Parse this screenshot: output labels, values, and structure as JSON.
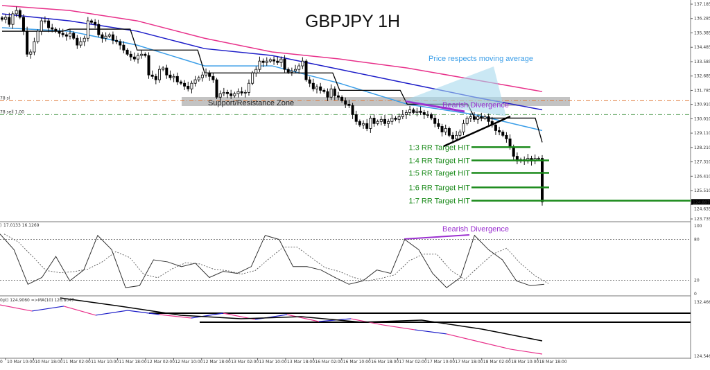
{
  "chart_data": {
    "type": "candlestick",
    "title": "GBPJPY 1H",
    "price_axis": {
      "ticks": [
        "137.185",
        "136.285",
        "135.385",
        "134.485",
        "133.585",
        "132.685",
        "131.785",
        "130.910",
        "130.010",
        "129.110",
        "128.210",
        "127.310",
        "126.410",
        "125.510",
        "124.635",
        "123.735"
      ],
      "range": [
        123.735,
        137.185
      ],
      "current_price": "124.807"
    },
    "time_axis": {
      "partial_first_label": "0",
      "ticks": [
        "10 Mar 10:00",
        "10 Mar 18:00",
        "11 Mar 02:00",
        "11 Mar 10:00",
        "11 Mar 18:00",
        "12 Mar 02:00",
        "12 Mar 10:00",
        "12 Mar 18:00",
        "13 Mar 02:00",
        "13 Mar 10:00",
        "13 Mar 18:00",
        "16 Mar 02:00",
        "16 Mar 10:00",
        "16 Mar 18:00",
        "17 Mar 02:00",
        "17 Mar 10:00",
        "17 Mar 18:00",
        "18 Mar 02:00",
        "18 Mar 10:00",
        "18 Mar 18:00"
      ]
    },
    "closes": [
      136.23,
      136.36,
      135.92,
      136.58,
      136.79,
      136.36,
      135.49,
      134.05,
      134.19,
      134.84,
      135.49,
      136.14,
      136.14,
      135.71,
      135.62,
      135.49,
      135.36,
      135.27,
      135.18,
      135.36,
      135.05,
      134.62,
      134.84,
      135.05,
      136.14,
      136.05,
      135.92,
      135.27,
      135.05,
      135.18,
      135.27,
      134.92,
      134.84,
      134.62,
      134.31,
      134.05,
      133.88,
      133.75,
      133.97,
      134.05,
      133.97,
      132.75,
      132.66,
      132.45,
      133.1,
      133.19,
      132.75,
      132.58,
      132.66,
      132.32,
      132.23,
      132.05,
      131.88,
      132.23,
      132.45,
      132.58,
      132.75,
      132.88,
      132.66,
      132.45,
      131.36,
      131.58,
      131.66,
      131.58,
      131.45,
      131.58,
      131.71,
      131.62,
      131.66,
      132.23,
      132.88,
      133.1,
      133.62,
      133.53,
      133.62,
      133.71,
      133.62,
      133.53,
      133.75,
      133.1,
      132.93,
      133.01,
      133.1,
      133.32,
      133.62,
      132.45,
      132.23,
      131.88,
      132.01,
      131.79,
      131.71,
      131.36,
      131.88,
      131.45,
      131.36,
      131.14,
      130.92,
      130.84,
      130.27,
      129.84,
      129.62,
      129.71,
      129.4,
      130.05,
      129.71,
      129.84,
      129.97,
      129.71,
      129.84,
      130.05,
      129.97,
      130.14,
      130.27,
      130.4,
      130.57,
      130.4,
      130.49,
      130.4,
      130.27,
      130.27,
      130.05,
      129.71,
      129.53,
      129.18,
      129.4,
      128.97,
      128.75,
      128.97,
      129.18,
      129.71,
      130.05,
      130.14,
      129.97,
      130.14,
      130.05,
      130.14,
      129.84,
      129.62,
      129.27,
      129.18,
      128.97,
      128.75,
      128.23,
      127.66,
      127.36,
      127.45,
      127.36,
      127.53,
      127.36,
      127.53,
      127.53,
      124.81
    ],
    "moving_averages": [
      {
        "color": "#e8308a",
        "values": [
          137.1,
          136.79,
          136.14,
          135.05,
          134.19,
          133.75,
          133.19,
          132.45,
          131.71
        ]
      },
      {
        "color": "#1c1cc8",
        "values": [
          136.58,
          136.14,
          135.49,
          134.4,
          133.97,
          133.1,
          132.23,
          131.36,
          130.57
        ]
      },
      {
        "color": "#3b9ee8",
        "values": [
          135.71,
          135.49,
          134.62,
          133.32,
          133.32,
          132.23,
          130.92,
          130.27,
          129.27
        ]
      },
      {
        "color": "#000000",
        "step": true,
        "values": [
          135.49,
          135.62,
          134.31,
          132.88,
          132.88,
          131.79,
          130.92,
          130.05,
          128.53
        ]
      }
    ],
    "order_lines": [
      {
        "label": "78 sl",
        "price": 131.14,
        "color": "#e07a3a"
      },
      {
        "label": "78 sell 1.00",
        "price": 130.27,
        "color": "#5aa05a"
      }
    ],
    "annotations": {
      "support_resistance": {
        "label": "Support/Resistance Zone",
        "price_range": [
          130.84,
          131.45
        ]
      },
      "ma_note": "Price respects moving average",
      "bearish_divergence_price": "Bearish Divergence",
      "targets": [
        {
          "label": "1:3 RR Target HIT",
          "price": 128.23
        },
        {
          "label": "1:4 RR Target HIT",
          "price": 127.4
        },
        {
          "label": "1:5 RR Target HIT",
          "price": 126.62
        },
        {
          "label": "1:6 RR Target HIT",
          "price": 125.71
        },
        {
          "label": "1:7 RR Target HIT",
          "price": 124.88
        }
      ],
      "colors": {
        "targets": "#1a8a1a",
        "divergence": "#9b30d0",
        "ma_note": "#3b9ee8"
      }
    },
    "stochastic": {
      "header": "17.0133 16.1269",
      "header_prefix": ")",
      "ticks": [
        "100",
        "80",
        "20",
        "0"
      ],
      "levels": [
        80,
        20
      ],
      "main": [
        88,
        65,
        14,
        24,
        55,
        19,
        35,
        86,
        65,
        9,
        12,
        50,
        47,
        40,
        45,
        24,
        33,
        30,
        40,
        86,
        80,
        40,
        40,
        35,
        24,
        14,
        19,
        35,
        30,
        80,
        65,
        30,
        9,
        24,
        86,
        65,
        50,
        19,
        12,
        14
      ],
      "divergence_label": "Bearish Divergence"
    },
    "lower_indicator": {
      "header": "0pt) 124.9060  =>MA(10) 126.8047",
      "ticks": [
        "132.466",
        "124.546"
      ],
      "range": [
        124.546,
        132.466
      ],
      "ma_line": [
        null,
        133.08,
        131.86,
        130.54,
        130.03,
        130.33,
        129.52,
        129.83,
        128.51,
        126.78
      ],
      "zigzag": [
        {
          "v": 132.06,
          "c": "#e8308a"
        },
        {
          "v": 131.15,
          "c": "#e8308a"
        },
        {
          "v": 131.86,
          "c": "#1c1cc8"
        },
        {
          "v": 130.54,
          "c": "#e8308a"
        },
        {
          "v": 131.25,
          "c": "#1c1cc8"
        },
        {
          "v": 130.64,
          "c": "#1c1cc8"
        },
        {
          "v": 130.13,
          "c": "#e8308a"
        },
        {
          "v": 130.84,
          "c": "#1c1cc8"
        },
        {
          "v": 129.92,
          "c": "#e8308a"
        },
        {
          "v": 130.64,
          "c": "#1c1cc8"
        },
        {
          "v": 129.62,
          "c": "#e8308a"
        },
        {
          "v": 130.03,
          "c": "#1c1cc8"
        },
        {
          "v": 129.12,
          "c": "#e8308a"
        },
        {
          "v": 128.41,
          "c": "#e8308a"
        },
        {
          "v": 127.8,
          "c": "#1c1cc8"
        },
        {
          "v": 126.68,
          "c": "#e8308a"
        },
        {
          "v": 125.57,
          "c": "#e8308a"
        },
        {
          "v": 124.85,
          "c": "#e8308a"
        }
      ],
      "levels": [
        130.84,
        129.52
      ]
    }
  }
}
